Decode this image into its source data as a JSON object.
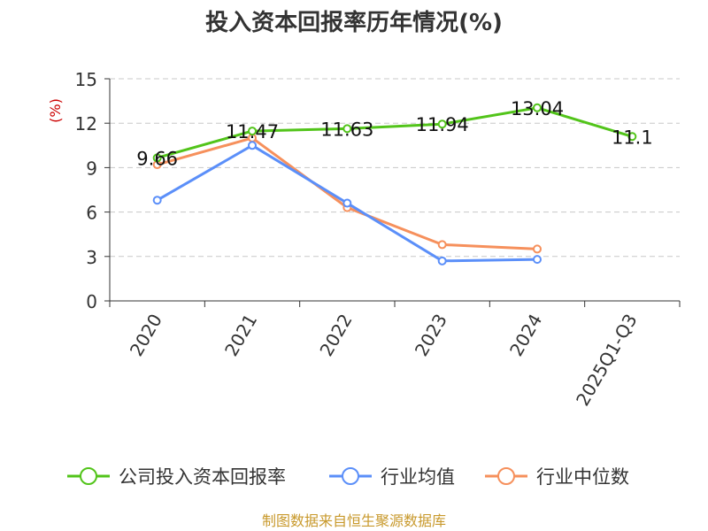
{
  "chart_data": {
    "type": "line",
    "title": "投入资本回报率历年情况(%)",
    "ylabel": "(%)",
    "xlabel": "",
    "categories": [
      "2020",
      "2021",
      "2022",
      "2023",
      "2024",
      "2025Q1-Q3"
    ],
    "ylim": [
      0,
      15
    ],
    "yticks": [
      0,
      3,
      6,
      9,
      12,
      15
    ],
    "grid": true,
    "legend_position": "bottom",
    "series": [
      {
        "name": "公司投入资本回报率",
        "color": "#52c41a",
        "values": [
          9.66,
          11.47,
          11.63,
          11.94,
          13.04,
          11.1
        ],
        "data_labels": [
          "9.66",
          "11.47",
          "11.63",
          "11.94",
          "13.04",
          "11.1"
        ]
      },
      {
        "name": "行业均值",
        "color": "#5b8ff9",
        "values": [
          6.8,
          10.5,
          6.6,
          2.7,
          2.8,
          null
        ]
      },
      {
        "name": "行业中位数",
        "color": "#f6905c",
        "values": [
          9.2,
          11.0,
          6.3,
          3.8,
          3.5,
          null
        ]
      }
    ],
    "source": "制图数据来自恒生聚源数据库"
  }
}
